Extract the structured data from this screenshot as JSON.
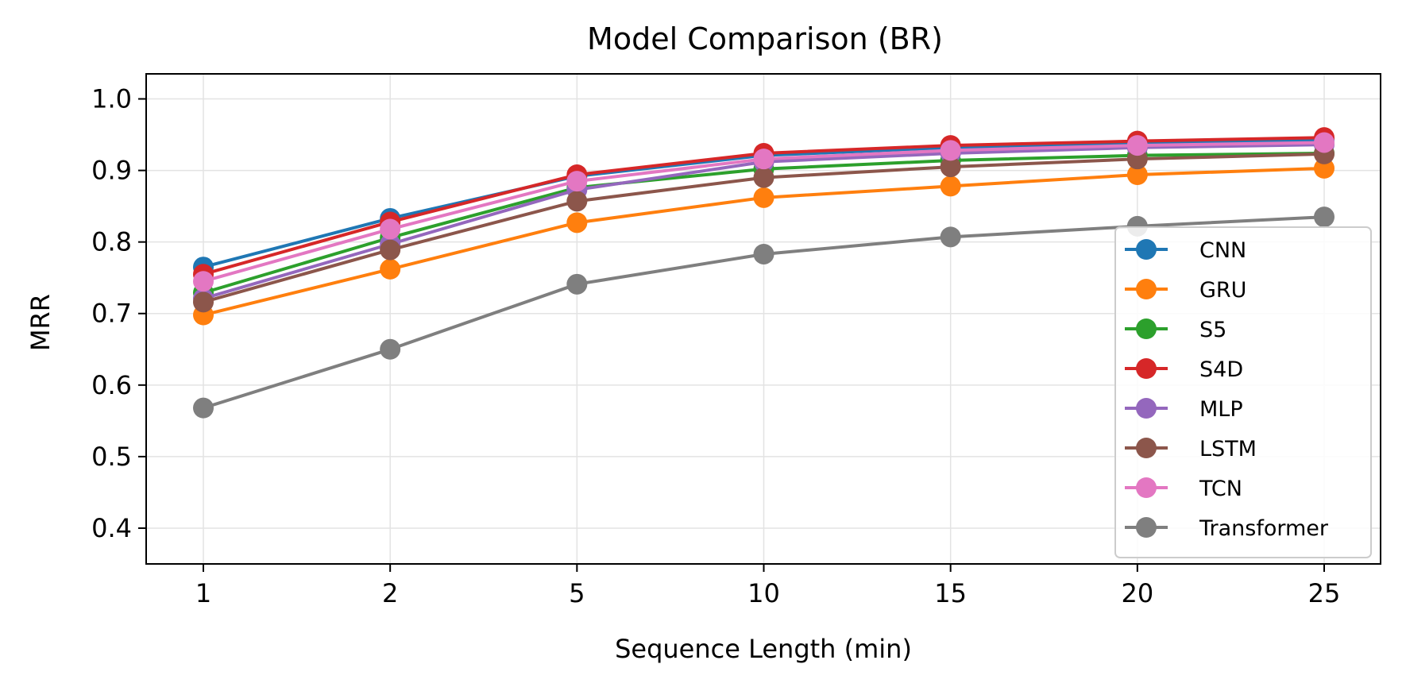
{
  "chart_data": {
    "type": "line",
    "title": "Model Comparison (BR)",
    "xlabel": "Sequence Length (min)",
    "ylabel": "MRR",
    "categories": [
      "1",
      "2",
      "5",
      "10",
      "15",
      "20",
      "25"
    ],
    "ylim": [
      0.35,
      1.035
    ],
    "yticks": [
      0.4,
      0.5,
      0.6,
      0.7,
      0.8,
      0.9,
      1.0
    ],
    "ytick_labels": [
      "0.4",
      "0.5",
      "0.6",
      "0.7",
      "0.8",
      "0.9",
      "1.0"
    ],
    "grid": true,
    "legend_position": "lower-right",
    "series": [
      {
        "name": "CNN",
        "color": "#1f77b4",
        "values": [
          0.765,
          0.833,
          0.892,
          0.921,
          0.932,
          0.938,
          0.943
        ]
      },
      {
        "name": "GRU",
        "color": "#ff7f0e",
        "values": [
          0.698,
          0.762,
          0.827,
          0.862,
          0.878,
          0.894,
          0.903
        ]
      },
      {
        "name": "S5",
        "color": "#2ca02c",
        "values": [
          0.729,
          0.806,
          0.876,
          0.902,
          0.914,
          0.921,
          0.924
        ]
      },
      {
        "name": "S4D",
        "color": "#d62728",
        "values": [
          0.755,
          0.828,
          0.894,
          0.924,
          0.935,
          0.941,
          0.946
        ]
      },
      {
        "name": "MLP",
        "color": "#9467bd",
        "values": [
          0.721,
          0.797,
          0.873,
          0.912,
          0.924,
          0.932,
          0.936
        ]
      },
      {
        "name": "LSTM",
        "color": "#8c564b",
        "values": [
          0.716,
          0.789,
          0.857,
          0.89,
          0.905,
          0.916,
          0.923
        ]
      },
      {
        "name": "TCN",
        "color": "#e377c2",
        "values": [
          0.745,
          0.818,
          0.885,
          0.916,
          0.928,
          0.935,
          0.939
        ]
      },
      {
        "name": "Transformer",
        "color": "#7f7f7f",
        "values": [
          0.568,
          0.65,
          0.741,
          0.783,
          0.807,
          0.822,
          0.835
        ]
      }
    ]
  }
}
